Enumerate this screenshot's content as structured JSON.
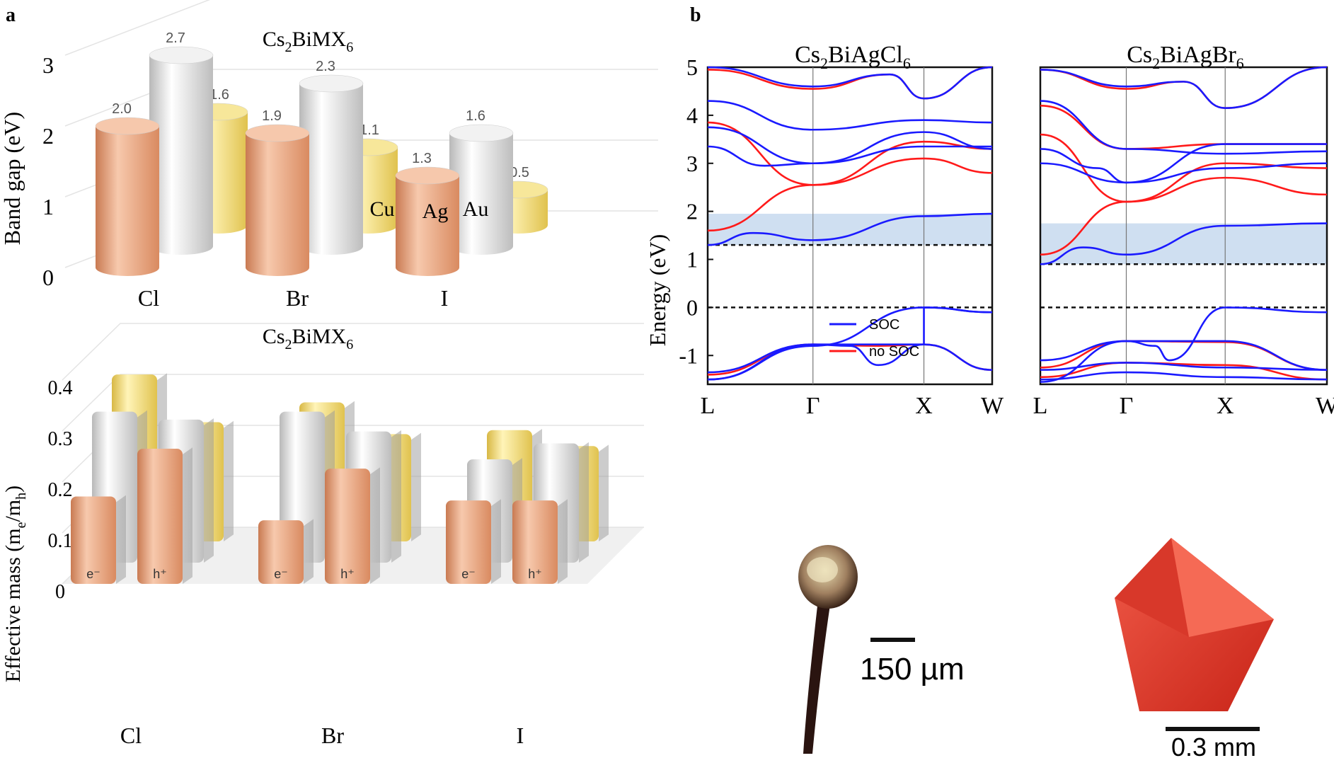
{
  "panel_a_label": "a",
  "panel_b_label": "b",
  "chart_data": [
    {
      "type": "bar",
      "title": "Cs2BiMX6",
      "title_parts": {
        "base": "Cs",
        "sub1": "2",
        "mid": "BiMX",
        "sub2": "6"
      },
      "ylabel": "Band gap (eV)",
      "ylim": [
        0,
        3
      ],
      "yticks": [
        "0",
        "1",
        "2",
        "3"
      ],
      "categories": [
        "Cl",
        "Br",
        "I"
      ],
      "series": [
        {
          "name": "Cu",
          "color": "#e8a07a",
          "values": [
            2.0,
            1.9,
            1.3
          ],
          "labels": [
            "2.0",
            "1.9",
            "1.3"
          ]
        },
        {
          "name": "Ag",
          "color": "#d8d8d8",
          "values": [
            2.7,
            2.3,
            1.6
          ],
          "labels": [
            "2.7",
            "2.3",
            "1.6"
          ]
        },
        {
          "name": "Au",
          "color": "#f2dc78",
          "values": [
            1.6,
            1.1,
            0.5
          ],
          "labels": [
            "1.6",
            "1.1",
            "0.5"
          ]
        }
      ],
      "inline_labels": [
        "Cu",
        "Ag",
        "Au"
      ]
    },
    {
      "type": "bar",
      "title": "Cs2BiMX6",
      "title_parts": {
        "base": "Cs",
        "sub1": "2",
        "mid": "BiMX",
        "sub2": "6"
      },
      "ylabel": "Effective mass (me/mh)",
      "ylabel_parts": {
        "pre": "Effective mass (m",
        "sub1": "e",
        "mid": "/m",
        "sub2": "h",
        "post": ")"
      },
      "ylim": [
        0,
        0.4
      ],
      "yticks": [
        "0",
        "0.1",
        "0.2",
        "0.3",
        "0.4"
      ],
      "categories": [
        "Cl",
        "Br",
        "I"
      ],
      "bar_tags": {
        "electron": "e⁻",
        "hole": "h⁺"
      },
      "series": [
        {
          "name": "Cu e-",
          "color": "#e8a07a",
          "values": [
            0.22,
            0.16,
            0.21
          ]
        },
        {
          "name": "Cu h+",
          "color": "#e8a07a",
          "values": [
            0.34,
            0.29,
            0.21
          ]
        },
        {
          "name": "Ag e-",
          "color": "#d8d8d8",
          "values": [
            0.38,
            0.38,
            0.26
          ]
        },
        {
          "name": "Ag h+",
          "color": "#d8d8d8",
          "values": [
            0.36,
            0.33,
            0.3
          ]
        },
        {
          "name": "Au e-",
          "color": "#f2dc78",
          "values": [
            0.42,
            0.35,
            0.28
          ]
        },
        {
          "name": "Au h+",
          "color": "#f2dc78",
          "values": [
            0.3,
            0.27,
            0.24
          ]
        }
      ]
    },
    {
      "type": "line",
      "title": "Cs2BiAgCl6",
      "title_parts": {
        "base": "Cs",
        "sub1": "2",
        "mid": "BiAgCl",
        "sub2": "6"
      },
      "ylabel": "Energy (eV)",
      "ylim": [
        -1.6,
        5
      ],
      "yticks": [
        "5",
        "4",
        "3",
        "2",
        "1",
        "0",
        "-1"
      ],
      "xticks": [
        "L",
        "Γ",
        "X",
        "W"
      ],
      "legend": [
        {
          "name": "SOC",
          "color": "#1a1aff"
        },
        {
          "name": "no SOC",
          "color": "#ff1a1a"
        }
      ],
      "band_gap_window": [
        1.3,
        1.95
      ],
      "dashed_levels": [
        1.3,
        0
      ]
    },
    {
      "type": "line",
      "title": "Cs2BiAgBr6",
      "title_parts": {
        "base": "Cs",
        "sub1": "2",
        "mid": "BiAgBr",
        "sub2": "6"
      },
      "ylim": [
        -1.6,
        5
      ],
      "xticks": [
        "L",
        "Γ",
        "X",
        "W"
      ],
      "band_gap_window": [
        0.9,
        1.75
      ],
      "dashed_levels": [
        0.9,
        0
      ]
    }
  ],
  "photos": {
    "left_scale": "150 µm",
    "right_scale": "0.3 mm",
    "left_color": "#6b4a3a",
    "right_color": "#e0382c"
  }
}
